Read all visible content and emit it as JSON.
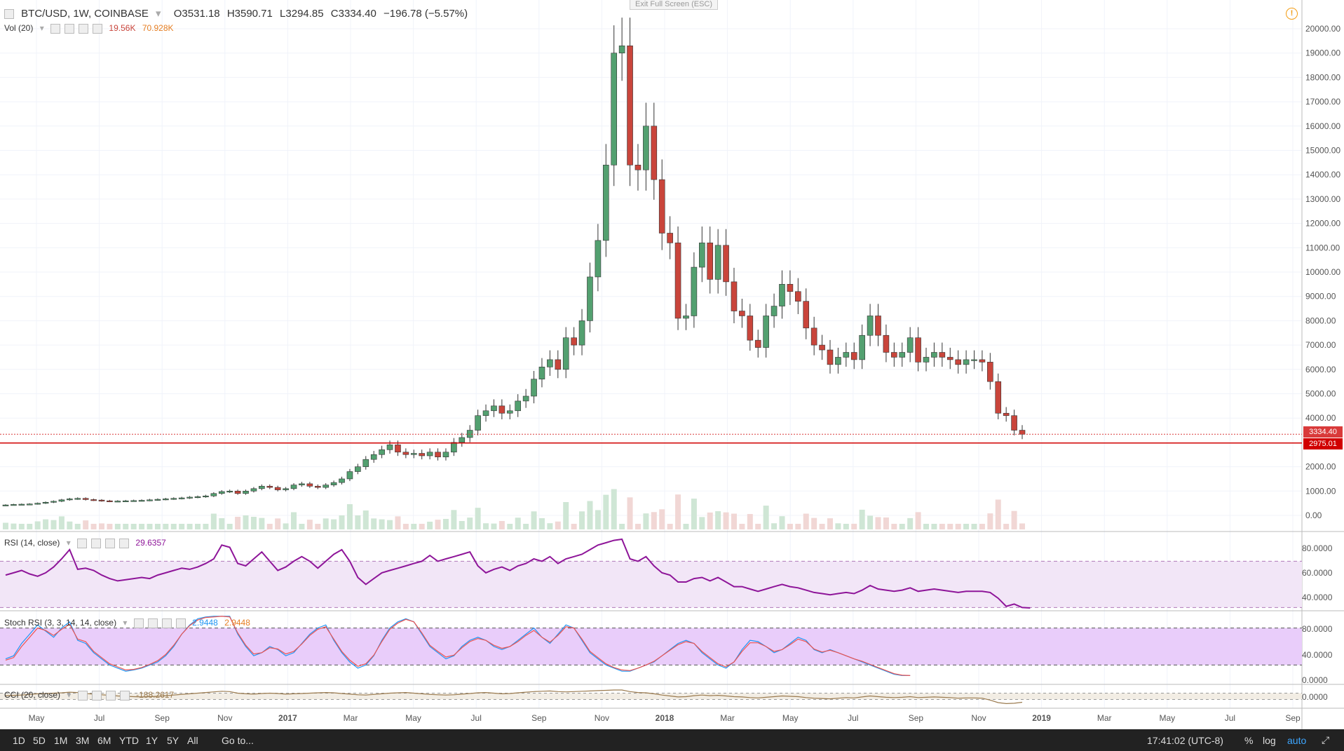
{
  "header": {
    "symbol": "BTC/USD, 1W, COINBASE",
    "open": "O3531.18",
    "high": "H3590.71",
    "low": "L3294.85",
    "close": "C3334.40",
    "change": "−196.78 (−5.57%)",
    "exit_fullscreen": "Exit Full Screen (ESC)"
  },
  "volume_indicator": {
    "label": "Vol (20)",
    "value1": "19.56K",
    "value2": "70.928K"
  },
  "rsi": {
    "label": "RSI (14, close)",
    "value": "29.6357",
    "levels": [
      "80.0000",
      "60.0000",
      "40.0000"
    ]
  },
  "stoch_rsi": {
    "label": "Stoch RSI (3, 3, 14, 14, close)",
    "k": "2.9448",
    "d": "2.9448",
    "levels": [
      "80.0000",
      "40.0000",
      "0.0000"
    ]
  },
  "cci": {
    "label": "CCI (20, close)",
    "value": "-188.2617",
    "levels": [
      "0.0000"
    ]
  },
  "price_axis": [
    "20000.00",
    "19000.00",
    "18000.00",
    "17000.00",
    "16000.00",
    "15000.00",
    "14000.00",
    "13000.00",
    "12000.00",
    "11000.00",
    "10000.00",
    "9000.00",
    "8000.00",
    "7000.00",
    "6000.00",
    "5000.00",
    "4000.00",
    "2000.00",
    "1000.00",
    "0.00"
  ],
  "current_price_label": "3334.40",
  "line_price_label": "2975.01",
  "time_axis": [
    "May",
    "Jul",
    "Sep",
    "Nov",
    "2017",
    "Mar",
    "May",
    "Jul",
    "Sep",
    "Nov",
    "2018",
    "Mar",
    "May",
    "Jul",
    "Sep",
    "Nov",
    "2019",
    "Mar",
    "May",
    "Jul",
    "Sep"
  ],
  "bottom_bar": {
    "timeframes": [
      "1D",
      "5D",
      "1M",
      "3M",
      "6M",
      "YTD",
      "1Y",
      "5Y",
      "All"
    ],
    "goto": "Go to...",
    "time": "17:41:02 (UTC-8)",
    "percent": "%",
    "log": "log",
    "auto": "auto"
  },
  "colors": {
    "up": "#53a070",
    "down": "#c9453b",
    "rsi": "#8e1599",
    "stoch_k": "#2196f3",
    "stoch_d": "#ef5350",
    "cci": "#9b7b4f"
  },
  "chart_data": {
    "type": "candlestick",
    "closes": [
      430,
      450,
      460,
      470,
      500,
      540,
      580,
      640,
      680,
      700,
      650,
      630,
      600,
      580,
      590,
      600,
      610,
      620,
      640,
      660,
      680,
      700,
      720,
      750,
      770,
      800,
      900,
      980,
      1000,
      900,
      1000,
      1100,
      1200,
      1150,
      1050,
      1100,
      1250,
      1300,
      1200,
      1150,
      1250,
      1350,
      1500,
      1800,
      2000,
      2300,
      2500,
      2700,
      2900,
      2600,
      2500,
      2550,
      2450,
      2600,
      2400,
      2600,
      3000,
      3200,
      3500,
      4100,
      4300,
      4500,
      4200,
      4300,
      4700,
      4900,
      5600,
      6100,
      6400,
      6000,
      7300,
      7000,
      8000,
      9800,
      11300,
      14400,
      19000,
      19300,
      14400,
      14200,
      16000,
      13800,
      11600,
      11200,
      8100,
      8200,
      10200,
      11200,
      9700,
      11100,
      9600,
      8400,
      8200,
      7200,
      6900,
      8200,
      8600,
      9500,
      9200,
      8800,
      7700,
      7000,
      6800,
      6200,
      6500,
      6700,
      6400,
      7400,
      8200,
      7400,
      6700,
      6500,
      6700,
      7300,
      6300,
      6500,
      6700,
      6500,
      6400,
      6200,
      6400,
      6400,
      6300,
      5500,
      4200,
      4100,
      3500,
      3334
    ],
    "series": [
      {
        "name": "RSI",
        "values": [
          58,
          60,
          62,
          59,
          57,
          60,
          65,
          72,
          80,
          63,
          64,
          62,
          58,
          55,
          53,
          54,
          55,
          56,
          55,
          58,
          60,
          62,
          64,
          63,
          65,
          68,
          72,
          84,
          82,
          68,
          66,
          72,
          78,
          70,
          62,
          65,
          70,
          74,
          70,
          64,
          70,
          76,
          80,
          70,
          56,
          50,
          55,
          60,
          62,
          64,
          66,
          68,
          70,
          75,
          70,
          72,
          74,
          76,
          78,
          66,
          60,
          63,
          65,
          62,
          66,
          68,
          72,
          70,
          74,
          68,
          72,
          74,
          76,
          80,
          84,
          86,
          88,
          89,
          72,
          70,
          74,
          66,
          60,
          58,
          52,
          52,
          55,
          56,
          53,
          56,
          52,
          48,
          48,
          46,
          44,
          46,
          48,
          50,
          48,
          47,
          45,
          43,
          42,
          41,
          42,
          43,
          42,
          45,
          49,
          46,
          45,
          44,
          45,
          47,
          44,
          45,
          46,
          45,
          44,
          43,
          44,
          44,
          44,
          43,
          38,
          31,
          33,
          30,
          29.6
        ]
      },
      {
        "name": "K",
        "values": [
          30,
          35,
          55,
          70,
          85,
          75,
          65,
          80,
          90,
          60,
          55,
          40,
          30,
          20,
          15,
          10,
          12,
          15,
          20,
          25,
          35,
          50,
          70,
          85,
          95,
          98,
          99,
          99,
          99,
          70,
          50,
          35,
          40,
          50,
          45,
          35,
          40,
          55,
          70,
          80,
          85,
          60,
          40,
          25,
          15,
          20,
          35,
          60,
          80,
          90,
          95,
          90,
          70,
          50,
          40,
          30,
          35,
          50,
          60,
          65,
          60,
          50,
          45,
          50,
          60,
          70,
          80,
          65,
          55,
          70,
          85,
          80,
          60,
          40,
          30,
          20,
          15,
          10,
          10,
          15,
          20,
          25,
          35,
          45,
          55,
          60,
          55,
          40,
          30,
          20,
          15,
          25,
          45,
          60,
          58,
          50,
          40,
          45,
          55,
          65,
          60,
          45,
          40,
          45,
          40,
          35,
          30,
          25,
          20,
          15,
          10,
          5,
          3,
          2.9
        ]
      },
      {
        "name": "D",
        "values": [
          28,
          32,
          50,
          65,
          80,
          76,
          68,
          78,
          86,
          62,
          58,
          42,
          32,
          22,
          17,
          12,
          13,
          16,
          21,
          27,
          37,
          52,
          70,
          84,
          93,
          97,
          98,
          99,
          98,
          72,
          52,
          38,
          40,
          48,
          46,
          38,
          42,
          54,
          68,
          78,
          82,
          62,
          42,
          28,
          18,
          22,
          36,
          58,
          78,
          88,
          94,
          90,
          72,
          52,
          42,
          33,
          36,
          48,
          58,
          63,
          60,
          52,
          47,
          50,
          58,
          68,
          76,
          65,
          57,
          68,
          82,
          80,
          62,
          42,
          32,
          22,
          16,
          12,
          11,
          15,
          20,
          26,
          35,
          44,
          53,
          58,
          55,
          42,
          32,
          22,
          17,
          25,
          42,
          56,
          56,
          50,
          42,
          45,
          53,
          62,
          58,
          46,
          41,
          44,
          40,
          35,
          30,
          26,
          21,
          16,
          11,
          6,
          3.5,
          2.9
        ]
      },
      {
        "name": "CCI",
        "values": [
          20,
          30,
          40,
          60,
          80,
          90,
          100,
          110,
          130,
          120,
          90,
          70,
          50,
          30,
          10,
          0,
          -10,
          -20,
          -10,
          0,
          20,
          40,
          60,
          80,
          100,
          120,
          140,
          160,
          150,
          100,
          80,
          70,
          90,
          100,
          90,
          70,
          80,
          90,
          100,
          110,
          120,
          110,
          90,
          70,
          50,
          40,
          60,
          80,
          100,
          110,
          120,
          100,
          80,
          60,
          50,
          40,
          50,
          70,
          90,
          110,
          120,
          100,
          80,
          90,
          110,
          130,
          150,
          160,
          170,
          150,
          140,
          150,
          160,
          170,
          180,
          190,
          200,
          200,
          150,
          120,
          110,
          80,
          40,
          10,
          -20,
          -10,
          20,
          40,
          20,
          30,
          10,
          -10,
          -20,
          -40,
          -50,
          -30,
          -10,
          10,
          0,
          -10,
          -40,
          -60,
          -70,
          -80,
          -60,
          -40,
          -50,
          -20,
          10,
          -10,
          -30,
          -40,
          -30,
          -10,
          -40,
          -30,
          -20,
          -30,
          -40,
          -60,
          -50,
          -50,
          -60,
          -120,
          -200,
          -230,
          -220,
          -188
        ]
      }
    ]
  }
}
